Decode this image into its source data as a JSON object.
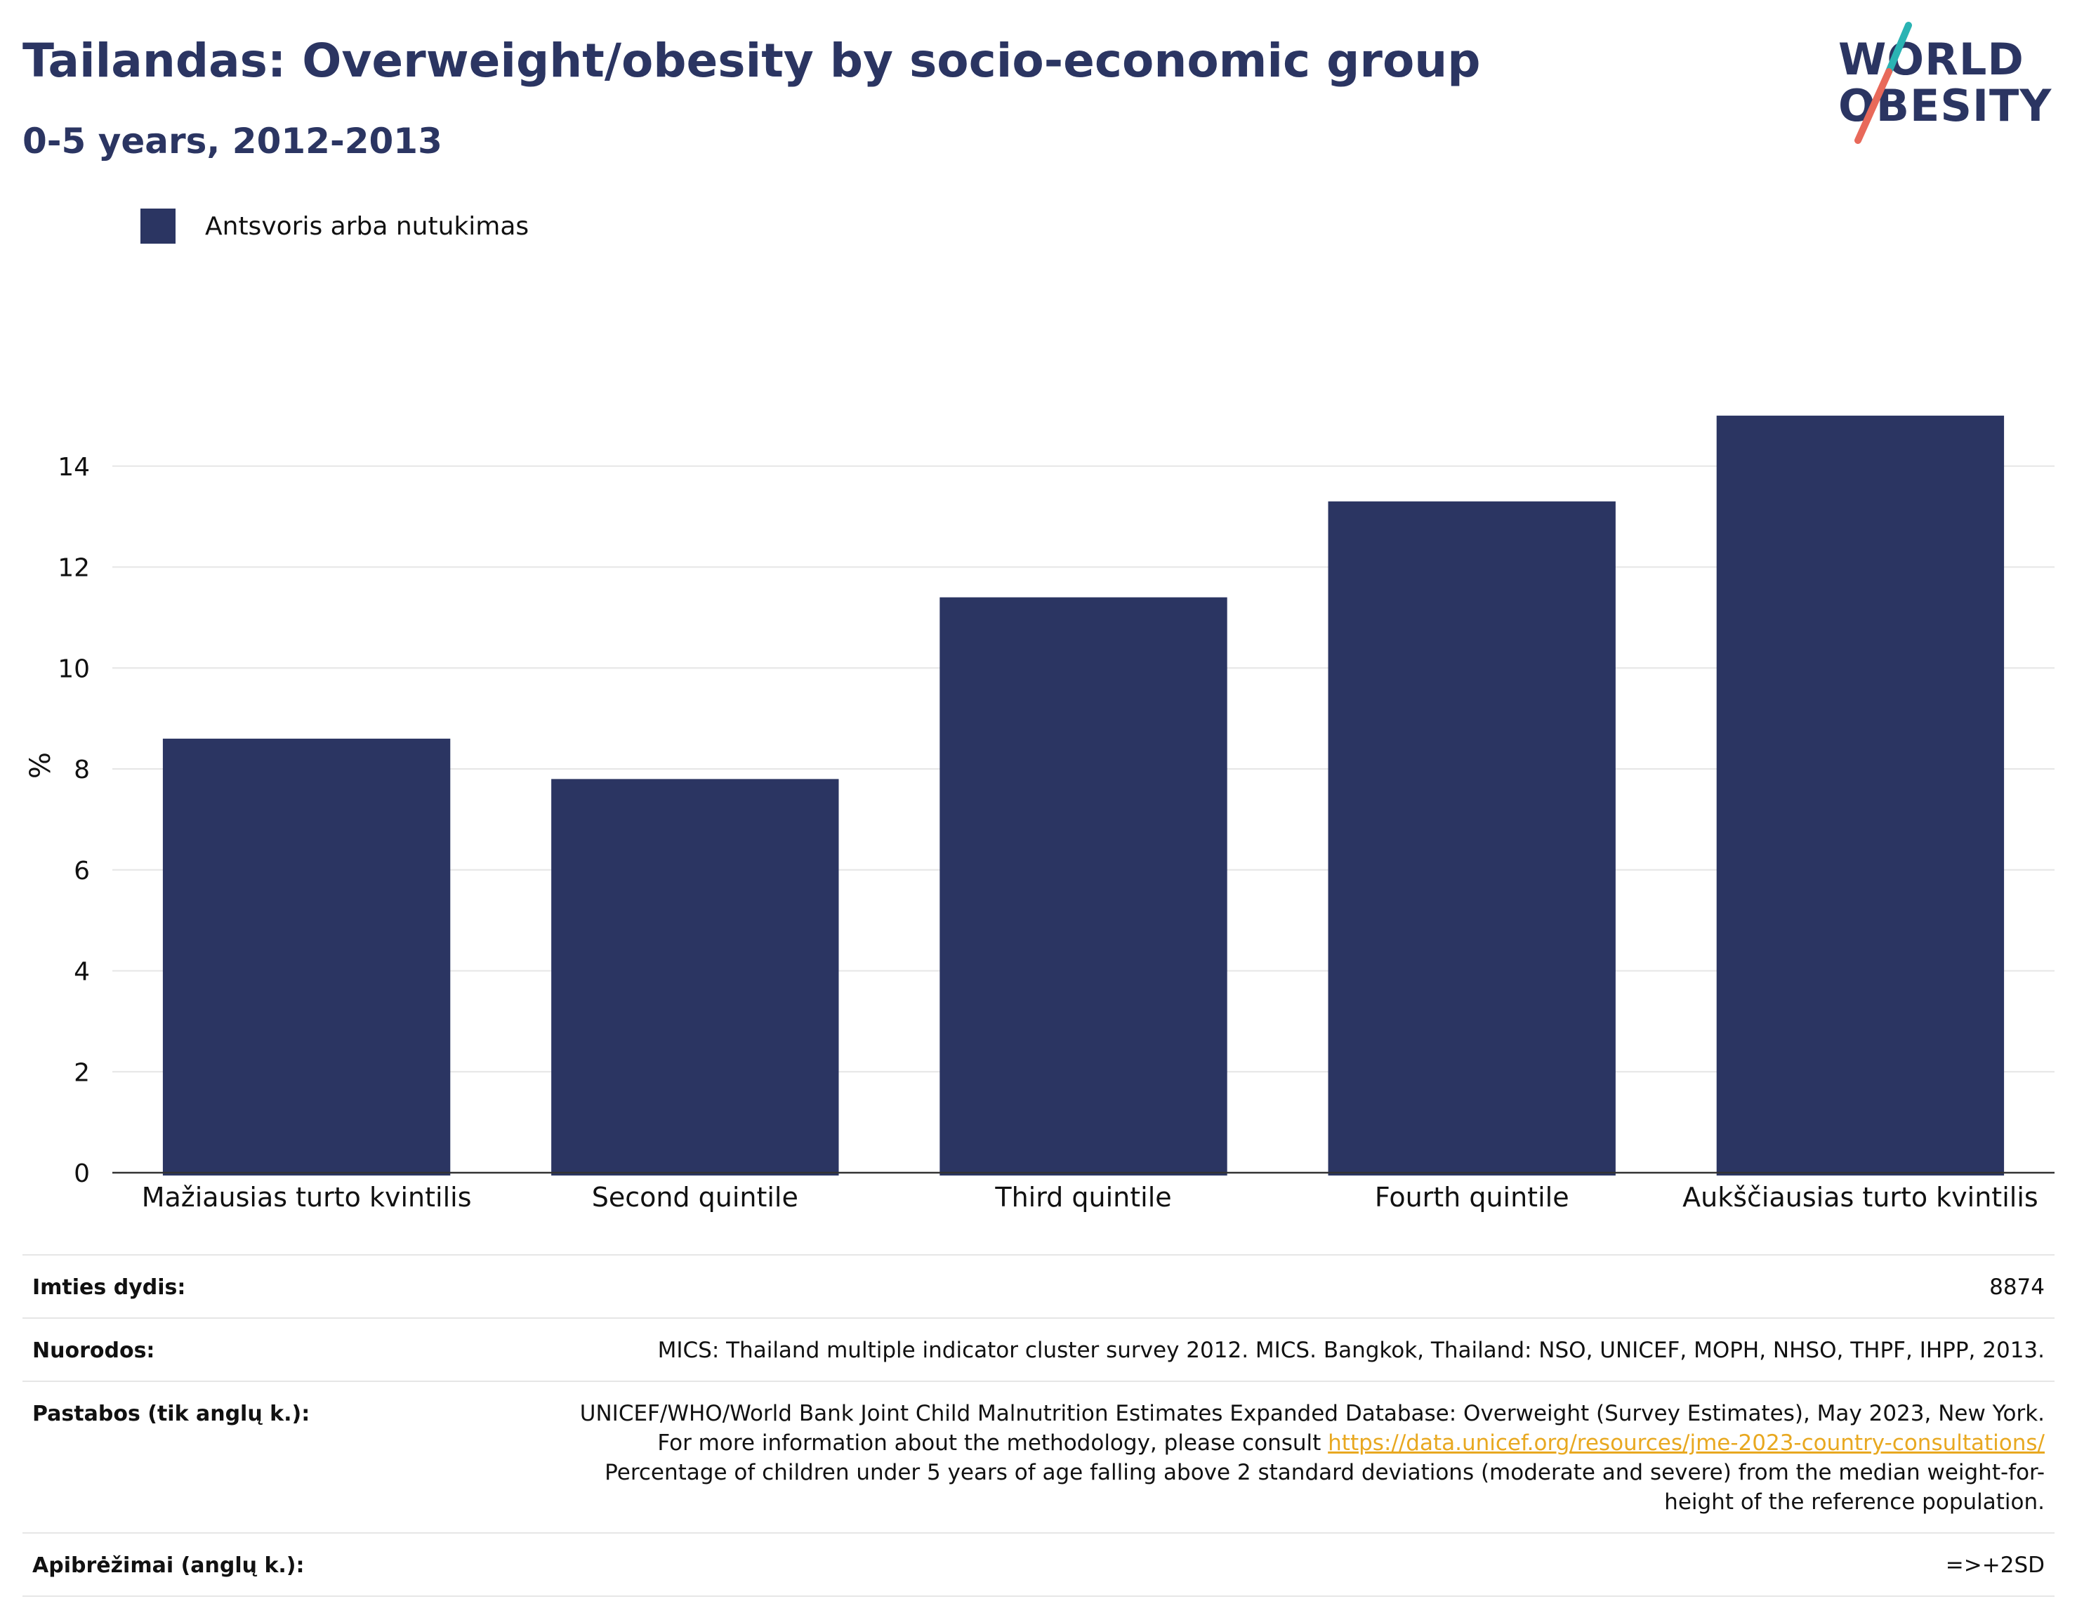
{
  "header": {
    "title": "Tailandas: Overweight/obesity by socio-economic group",
    "subtitle": "0-5 years, 2012-2013"
  },
  "logo": {
    "line1": "WORLD",
    "line2": "OBESITY",
    "accent_teal": "#2ab3b3",
    "accent_coral": "#e8695a"
  },
  "colors": {
    "bar": "#2b3562",
    "grid": "#e6e6e6",
    "axis": "#333333"
  },
  "chart_data": {
    "type": "bar",
    "categories": [
      "Mažiausias turto kvintilis",
      "Second quintile",
      "Third quintile",
      "Fourth quintile",
      "Aukščiausias turto kvintilis"
    ],
    "series": [
      {
        "name": "Antsvoris arba nutukimas",
        "values": [
          8.6,
          7.8,
          11.4,
          13.3,
          15.0
        ]
      }
    ],
    "ylabel": "%",
    "ylim": [
      0,
      16
    ],
    "yticks": [
      0,
      2,
      4,
      6,
      8,
      10,
      12,
      14
    ],
    "grid": true,
    "legend": "top-left"
  },
  "info": {
    "sample_label": "Imties dydis:",
    "sample_value": "8874",
    "refs_label": "Nuorodos:",
    "refs_value": "MICS: Thailand multiple indicator cluster survey 2012. MICS. Bangkok, Thailand: NSO, UNICEF, MOPH, NHSO, THPF, IHPP, 2013.",
    "notes_label": "Pastabos (tik anglų k.):",
    "notes_pre": "UNICEF/WHO/World Bank Joint Child Malnutrition Estimates Expanded Database: Overweight (Survey Estimates), May 2023, New York. For more information about the methodology, please consult",
    "notes_link": "https://data.unicef.org/resources/jme-2023-country-consultations/",
    "notes_post": "Percentage of children under 5 years of age falling above 2 standard deviations (moderate and severe) from the median weight-for-height of the reference population.",
    "defs_label": "Apibrėžimai (anglų k.):",
    "defs_value": "=>+2SD"
  }
}
